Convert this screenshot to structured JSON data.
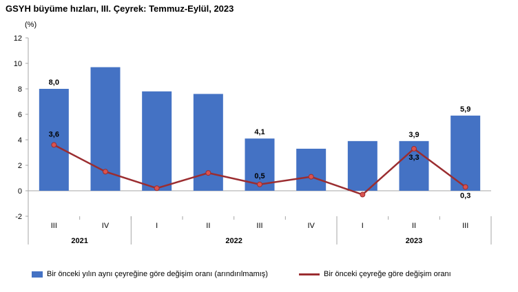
{
  "title": "GSYH büyüme hızları, III. Çeyrek: Temmuz-Eylül, 2023",
  "chart_data": {
    "type": "bar",
    "unit": "(%)",
    "ylim": [
      -2,
      12
    ],
    "yticks": [
      -2,
      0,
      2,
      4,
      6,
      8,
      10,
      12
    ],
    "categories": [
      "III",
      "IV",
      "I",
      "II",
      "III",
      "IV",
      "I",
      "II",
      "III"
    ],
    "year_groups": [
      {
        "label": "2021",
        "count": 2
      },
      {
        "label": "2022",
        "count": 4
      },
      {
        "label": "2023",
        "count": 3
      }
    ],
    "series": [
      {
        "name": "Bir önceki yılın aynı çeyreğine göre değişim oranı (arındırılmamış)",
        "type": "bar",
        "color": "#4472C4",
        "values": [
          8.0,
          9.7,
          7.8,
          7.6,
          4.1,
          3.3,
          3.9,
          3.9,
          5.9
        ],
        "labels": [
          "8,0",
          "",
          "",
          "",
          "4,1",
          "",
          "",
          "3,9",
          "5,9"
        ]
      },
      {
        "name": "Bir önceki çeyreğe göre değişim oranı",
        "type": "line",
        "color": "#9B2D30",
        "values": [
          3.6,
          1.5,
          0.2,
          1.4,
          0.5,
          1.1,
          -0.3,
          3.3,
          0.3
        ],
        "labels": [
          "3,6",
          "",
          "",
          "",
          "0,5",
          "",
          "",
          "3,3",
          "0,3"
        ]
      }
    ]
  }
}
